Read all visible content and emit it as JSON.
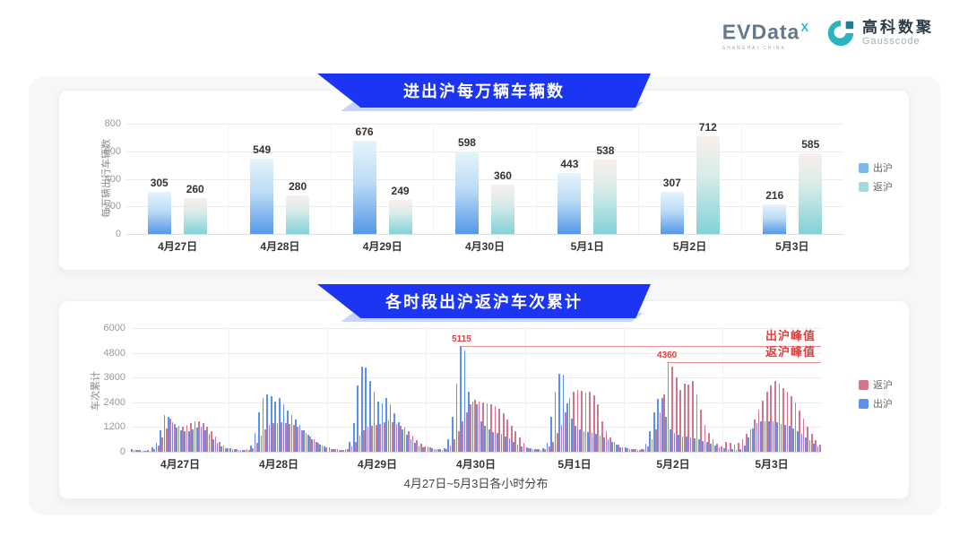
{
  "logos": {
    "evdata": {
      "text": "EVData",
      "sup": "X",
      "sub": "SHANGHAI CHINA"
    },
    "gausscode": {
      "cn": "高科数聚",
      "en": "Gausscode",
      "brand_color": "#2bb3c0"
    }
  },
  "colors": {
    "banner_blue": "#1b35f2",
    "chart1_out_bar_bottom": "#5598e8",
    "chart1_ret_bar_bottom": "#82d2d8",
    "chart1_legend_out": "#7db8ed",
    "chart1_legend_ret": "#a4dade",
    "chart2_out": "#5c90ee",
    "chart2_ret": "#d4758e",
    "annotation_red": "#e03e3e"
  },
  "chart_data": [
    {
      "type": "bar",
      "title": "进出沪每万辆车辆数",
      "ylabel": "每万辆出行车辆数",
      "xlabel": "",
      "ylim": [
        0,
        800
      ],
      "yticks": [
        0,
        200,
        400,
        600,
        800
      ],
      "grid": true,
      "legend_position": "right",
      "categories": [
        "4月27日",
        "4月28日",
        "4月29日",
        "4月30日",
        "5月1日",
        "5月2日",
        "5月3日"
      ],
      "series": [
        {
          "name": "出沪",
          "values": [
            305,
            549,
            676,
            598,
            443,
            307,
            216
          ]
        },
        {
          "name": "返沪",
          "values": [
            260,
            280,
            249,
            360,
            538,
            712,
            585
          ]
        }
      ]
    },
    {
      "type": "bar",
      "title": "各时段出沪返沪车次累计",
      "ylabel": "车次累计",
      "xlabel": "4月27日~5月3日各小时分布",
      "ylim": [
        0,
        6000
      ],
      "yticks": [
        0,
        1200,
        2400,
        3600,
        4800,
        6000
      ],
      "grid": true,
      "legend_position": "right",
      "legend_order": [
        "返沪",
        "出沪"
      ],
      "categories": [
        "4月27日",
        "4月28日",
        "4月29日",
        "4月30日",
        "5月1日",
        "5月2日",
        "5月3日"
      ],
      "x_unit": "hour 0-23 per day (estimated from pixels)",
      "series": [
        {
          "name": "出沪",
          "values_by_day": [
            [
              120,
              90,
              70,
              60,
              80,
              200,
              450,
              1050,
              1800,
              1700,
              1420,
              1180,
              1050,
              980,
              1020,
              1100,
              1180,
              1220,
              1050,
              850,
              620,
              420,
              280,
              160
            ],
            [
              180,
              130,
              100,
              90,
              110,
              300,
              900,
              1900,
              2600,
              2780,
              2700,
              2450,
              2600,
              2300,
              2000,
              1780,
              1550,
              1300,
              1050,
              820,
              620,
              460,
              340,
              240
            ],
            [
              200,
              150,
              120,
              100,
              150,
              500,
              1400,
              3200,
              4150,
              4100,
              3450,
              2900,
              2450,
              2350,
              2600,
              2300,
              1850,
              1450,
              1100,
              820,
              600,
              440,
              310,
              210
            ],
            [
              250,
              180,
              140,
              120,
              180,
              600,
              1700,
              3300,
              5115,
              4900,
              2900,
              2450,
              2300,
              1500,
              1250,
              1100,
              950,
              900,
              850,
              750,
              640,
              500,
              370,
              260
            ],
            [
              220,
              160,
              130,
              110,
              160,
              450,
              1700,
              2900,
              3800,
              3750,
              2350,
              1600,
              1250,
              1100,
              1000,
              950,
              900,
              850,
              800,
              700,
              590,
              470,
              340,
              230
            ],
            [
              200,
              150,
              120,
              100,
              140,
              400,
              1000,
              1900,
              2550,
              2600,
              1700,
              1100,
              900,
              820,
              760,
              720,
              700,
              650,
              600,
              540,
              470,
              390,
              300,
              200
            ],
            [
              180,
              140,
              110,
              100,
              130,
              300,
              700,
              1150,
              1400,
              1500,
              1480,
              1500,
              1460,
              1420,
              1370,
              1310,
              1250,
              1150,
              1000,
              850,
              700,
              550,
              400,
              250
            ]
          ]
        },
        {
          "name": "返沪",
          "values_by_day": [
            [
              100,
              80,
              60,
              50,
              60,
              130,
              300,
              700,
              1150,
              1600,
              1350,
              1250,
              1220,
              1300,
              1400,
              1480,
              1500,
              1400,
              1220,
              980,
              720,
              480,
              300,
              170
            ],
            [
              150,
              110,
              90,
              80,
              90,
              180,
              450,
              800,
              1100,
              1300,
              1400,
              1380,
              1430,
              1400,
              1350,
              1300,
              1200,
              1050,
              900,
              740,
              590,
              450,
              320,
              200
            ],
            [
              150,
              120,
              100,
              90,
              110,
              240,
              480,
              800,
              1050,
              1200,
              1250,
              1300,
              1350,
              1420,
              1520,
              1450,
              1340,
              1280,
              1180,
              980,
              780,
              580,
              400,
              250
            ],
            [
              200,
              150,
              120,
              100,
              130,
              300,
              600,
              1000,
              1500,
              1900,
              2300,
              2520,
              2450,
              2400,
              2350,
              2300,
              2200,
              2080,
              1880,
              1580,
              1280,
              980,
              680,
              440
            ],
            [
              180,
              140,
              110,
              100,
              120,
              250,
              500,
              900,
              1300,
              1900,
              2600,
              2900,
              3000,
              2950,
              2850,
              2900,
              2750,
              2300,
              1500,
              1000,
              700,
              490,
              340,
              220
            ],
            [
              180,
              140,
              110,
              100,
              120,
              280,
              600,
              1100,
              1900,
              2800,
              4360,
              4150,
              3600,
              3000,
              3300,
              3250,
              3450,
              2800,
              2050,
              1300,
              900,
              600,
              400,
              260
            ],
            [
              500,
              420,
              360,
              420,
              600,
              850,
              1100,
              1550,
              2050,
              2500,
              2900,
              3200,
              3450,
              3300,
              3100,
              2900,
              2680,
              2400,
              2000,
              1600,
              1200,
              850,
              550,
              330
            ]
          ]
        }
      ],
      "annotations": [
        {
          "text": "出沪峰值",
          "value": 5115,
          "value_label": "5115",
          "series": "出沪",
          "day_index": 3,
          "hour": 8
        },
        {
          "text": "返沪峰值",
          "value": 4360,
          "value_label": "4360",
          "series": "返沪",
          "day_index": 5,
          "hour": 10
        }
      ]
    }
  ]
}
